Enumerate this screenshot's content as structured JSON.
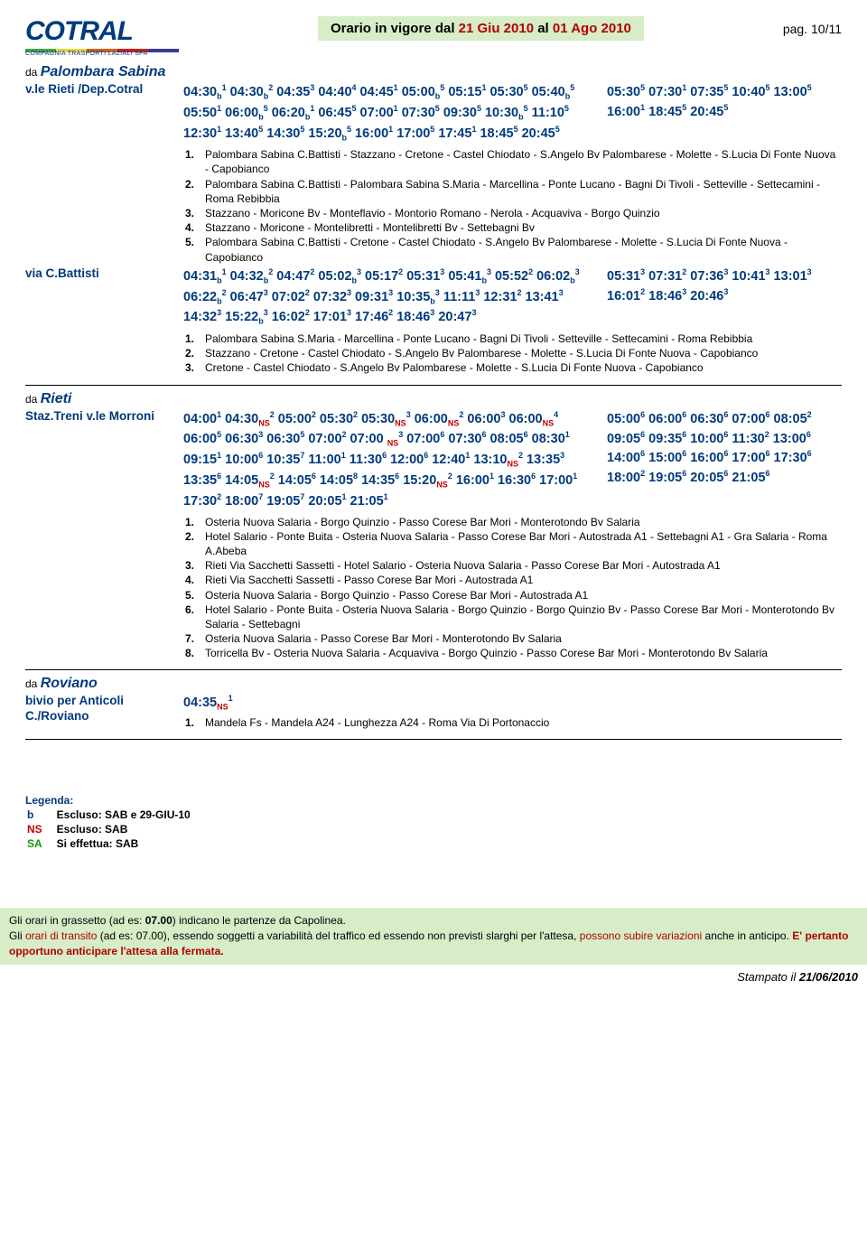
{
  "logo": {
    "name": "COTRAL",
    "tag": "COMPAGNIA TRASPORTI LAZIALI SPA",
    "stripes": [
      "#4ba64b",
      "#e9d64a",
      "#d1651f",
      "#c02424",
      "#3a3a8c"
    ]
  },
  "title": {
    "pre": "Orario in vigore dal ",
    "d1": "21 Giu 2010",
    "mid": " al ",
    "d2": "01 Ago 2010"
  },
  "pagenum": "pag. 10/11",
  "block1": {
    "origin": "Palombara Sabina",
    "label1": "v.le Rieti /Dep.Cotral",
    "times1_left": "04:30<sub>b</sub><sup>1</sup> 04:30<sub>b</sub><sup>2</sup> 04:35<sup>3</sup> 04:40<sup>4</sup> 04:45<sup>1</sup> 05:00<sub>b</sub><sup>5</sup> 05:15<sup>1</sup> 05:30<sup>5</sup> 05:40<sub>b</sub><sup>5</sup> 05:50<sup>1</sup> 06:00<sub>b</sub><sup>5</sup> 06:20<sub>b</sub><sup>1</sup> 06:45<sup>5</sup> 07:00<sup>1</sup> 07:30<sup>5</sup> 09:30<sup>5</sup> 10:30<sub>b</sub><sup>5</sup> 11:10<sup>5</sup> 12:30<sup>1</sup> 13:40<sup>5</sup> 14:30<sup>5</sup> 15:20<sub>b</sub><sup>5</sup> 16:00<sup>1</sup> 17:00<sup>5</sup> 17:45<sup>1</sup> 18:45<sup>5</sup> 20:45<sup>5</sup>",
    "times1_right": "05:30<sup>5</sup> 07:30<sup>1</sup> 07:35<sup>5</sup> 10:40<sup>5</sup> 13:00<sup>5</sup> 16:00<sup>1</sup> 18:45<sup>5</sup> 20:45<sup>5</sup>",
    "notes1": [
      "Palombara Sabina C.Battisti - Stazzano - Cretone - Castel Chiodato - S.Angelo Bv Palombarese - Molette - S.Lucia Di Fonte Nuova - Capobianco",
      "Palombara Sabina C.Battisti - Palombara Sabina S.Maria - Marcellina - Ponte Lucano - Bagni Di Tivoli - Setteville - Settecamini - Roma Rebibbia",
      "Stazzano - Moricone Bv - Monteflavio - Montorio Romano - Nerola - Acquaviva - Borgo Quinzio",
      "Stazzano - Moricone - Montelibretti - Montelibretti Bv - Settebagni Bv",
      "Palombara Sabina C.Battisti - Cretone - Castel Chiodato - S.Angelo Bv Palombarese - Molette - S.Lucia Di Fonte Nuova - Capobianco"
    ],
    "label2": "via C.Battisti",
    "times2_left": "04:31<sub>b</sub><sup>1</sup> 04:32<sub>b</sub><sup>2</sup> 04:47<sup>2</sup> 05:02<sub>b</sub><sup>3</sup> 05:17<sup>2</sup> 05:31<sup>3</sup> 05:41<sub>b</sub><sup>3</sup> 05:52<sup>2</sup> 06:02<sub>b</sub><sup>3</sup> 06:22<sub>b</sub><sup>2</sup> 06:47<sup>3</sup> 07:02<sup>2</sup> 07:32<sup>3</sup> 09:31<sup>3</sup> 10:35<sub>b</sub><sup>3</sup> 11:11<sup>3</sup> 12:31<sup>2</sup> 13:41<sup>3</sup> 14:32<sup>3</sup> 15:22<sub>b</sub><sup>3</sup> 16:02<sup>2</sup> 17:01<sup>3</sup> 17:46<sup>2</sup> 18:46<sup>3</sup> 20:47<sup>3</sup>",
    "times2_right": "05:31<sup>3</sup> 07:31<sup>2</sup> 07:36<sup>3</sup> 10:41<sup>3</sup> 13:01<sup>3</sup> 16:01<sup>2</sup> 18:46<sup>3</sup> 20:46<sup>3</sup>",
    "notes2": [
      "Palombara Sabina S.Maria - Marcellina - Ponte Lucano - Bagni Di Tivoli - Setteville - Settecamini - Roma Rebibbia",
      "Stazzano - Cretone - Castel Chiodato - S.Angelo Bv Palombarese - Molette - S.Lucia Di Fonte Nuova - Capobianco",
      "Cretone - Castel Chiodato - S.Angelo Bv Palombarese - Molette - S.Lucia Di Fonte Nuova - Capobianco"
    ]
  },
  "block2": {
    "origin": "Rieti",
    "label1": "Staz.Treni v.le Morroni",
    "times1_left": "04:00<sup>1</sup> 04:30<sub class=\"ns\">NS</sub><sup>2</sup> 05:00<sup>2</sup> 05:30<sup>2</sup> 05:30<sub class=\"ns\">NS</sub><sup>3</sup> 06:00<sub class=\"ns\">NS</sub><sup>2</sup> 06:00<sup>3</sup> 06:00<sub class=\"ns\">NS</sub><sup>4</sup> 06:00<sup>5</sup> 06:30<sup>3</sup> 06:30<sup>5</sup> 07:00<sup>2</sup> 07:00 <sub class=\"ns\">NS</sub><sup>3</sup> 07:00<sup>6</sup> 07:30<sup>6</sup> 08:05<sup>6</sup> 08:30<sup>1</sup> 09:15<sup>1</sup> 10:00<sup>6</sup> 10:35<sup>7</sup> 11:00<sup>1</sup> 11:30<sup>6</sup> 12:00<sup>6</sup> 12:40<sup>1</sup> 13:10<sub class=\"ns\">NS</sub><sup>2</sup> 13:35<sup>3</sup> 13:35<sup>6</sup> 14:05<sub class=\"ns\">NS</sub><sup>2</sup> 14:05<sup>6</sup> 14:05<sup>8</sup> 14:35<sup>6</sup> 15:20<sub class=\"ns\">NS</sub><sup>2</sup> 16:00<sup>1</sup> 16:30<sup>6</sup> 17:00<sup>1</sup> 17:30<sup>2</sup> 18:00<sup>7</sup> 19:05<sup>7</sup> 20:05<sup>1</sup> 21:05<sup>1</sup>",
    "times1_right": "05:00<sup>6</sup> 06:00<sup>6</sup> 06:30<sup>6</sup> 07:00<sup>6</sup> 08:05<sup>2</sup> 09:05<sup>6</sup> 09:35<sup>6</sup> 10:00<sup>6</sup> 11:30<sup>2</sup> 13:00<sup>6</sup> 14:00<sup>6</sup> 15:00<sup>6</sup> 16:00<sup>6</sup> 17:00<sup>6</sup> 17:30<sup>6</sup> 18:00<sup>2</sup> 19:05<sup>6</sup> 20:05<sup>6</sup> 21:05<sup>6</sup>",
    "notes1": [
      "Osteria Nuova Salaria - Borgo Quinzio - Passo Corese Bar Mori - Monterotondo Bv Salaria",
      "Hotel Salario - Ponte Buita - Osteria Nuova Salaria - Passo Corese Bar Mori - Autostrada A1 - Settebagni A1 - Gra Salaria - Roma A.Abeba",
      "Rieti Via Sacchetti Sassetti - Hotel Salario - Osteria Nuova Salaria - Passo Corese Bar Mori - Autostrada A1",
      "Rieti Via Sacchetti Sassetti - Passo Corese Bar Mori - Autostrada A1",
      "Osteria Nuova Salaria - Borgo Quinzio - Passo Corese Bar Mori - Autostrada A1",
      "Hotel Salario - Ponte Buita - Osteria Nuova Salaria - Borgo Quinzio - Borgo Quinzio Bv - Passo Corese Bar Mori - Monterotondo Bv Salaria - Settebagni",
      "Osteria Nuova Salaria - Passo Corese Bar Mori - Monterotondo Bv Salaria",
      "Torricella Bv - Osteria Nuova Salaria - Acquaviva - Borgo Quinzio - Passo Corese Bar Mori - Monterotondo Bv Salaria"
    ]
  },
  "block3": {
    "origin": "Roviano",
    "label1": "bivio per Anticoli C./Roviano",
    "time1": "04:35<sub class=\"ns\">NS</sub><sup>1</sup>",
    "notes1": [
      "Mandela Fs - Mandela A24 - Lunghezza A24 - Roma Via Di Portonaccio"
    ]
  },
  "legend": {
    "hd": "Legenda:",
    "rows": [
      {
        "k": "b",
        "cls": "kb",
        "v": "Escluso: SAB e 29-GIU-10"
      },
      {
        "k": "NS",
        "cls": "kr",
        "v": "Escluso: SAB"
      },
      {
        "k": "SA",
        "cls": "kg",
        "v": "Si effettua: SAB"
      }
    ]
  },
  "footer": {
    "l1a": "Gli orari in grassetto",
    "l1b": " (ad es: ",
    "l1c": "07.00",
    "l1d": ") indicano le partenze da Capolinea.",
    "l2a": "Gli ",
    "l2b": "orari di transito",
    "l2c": " (ad es: 07.00), essendo soggetti a variabilità del traffico ed essendo non previsti slarghi per l'attesa, ",
    "l2d": "possono subire variazioni",
    "l2e": " anche in anticipo. ",
    "l3": "E' pertanto opportuno anticipare l'attesa alla fermata."
  },
  "stamp": {
    "pre": "Stampato il ",
    "date": "21/06/2010"
  }
}
